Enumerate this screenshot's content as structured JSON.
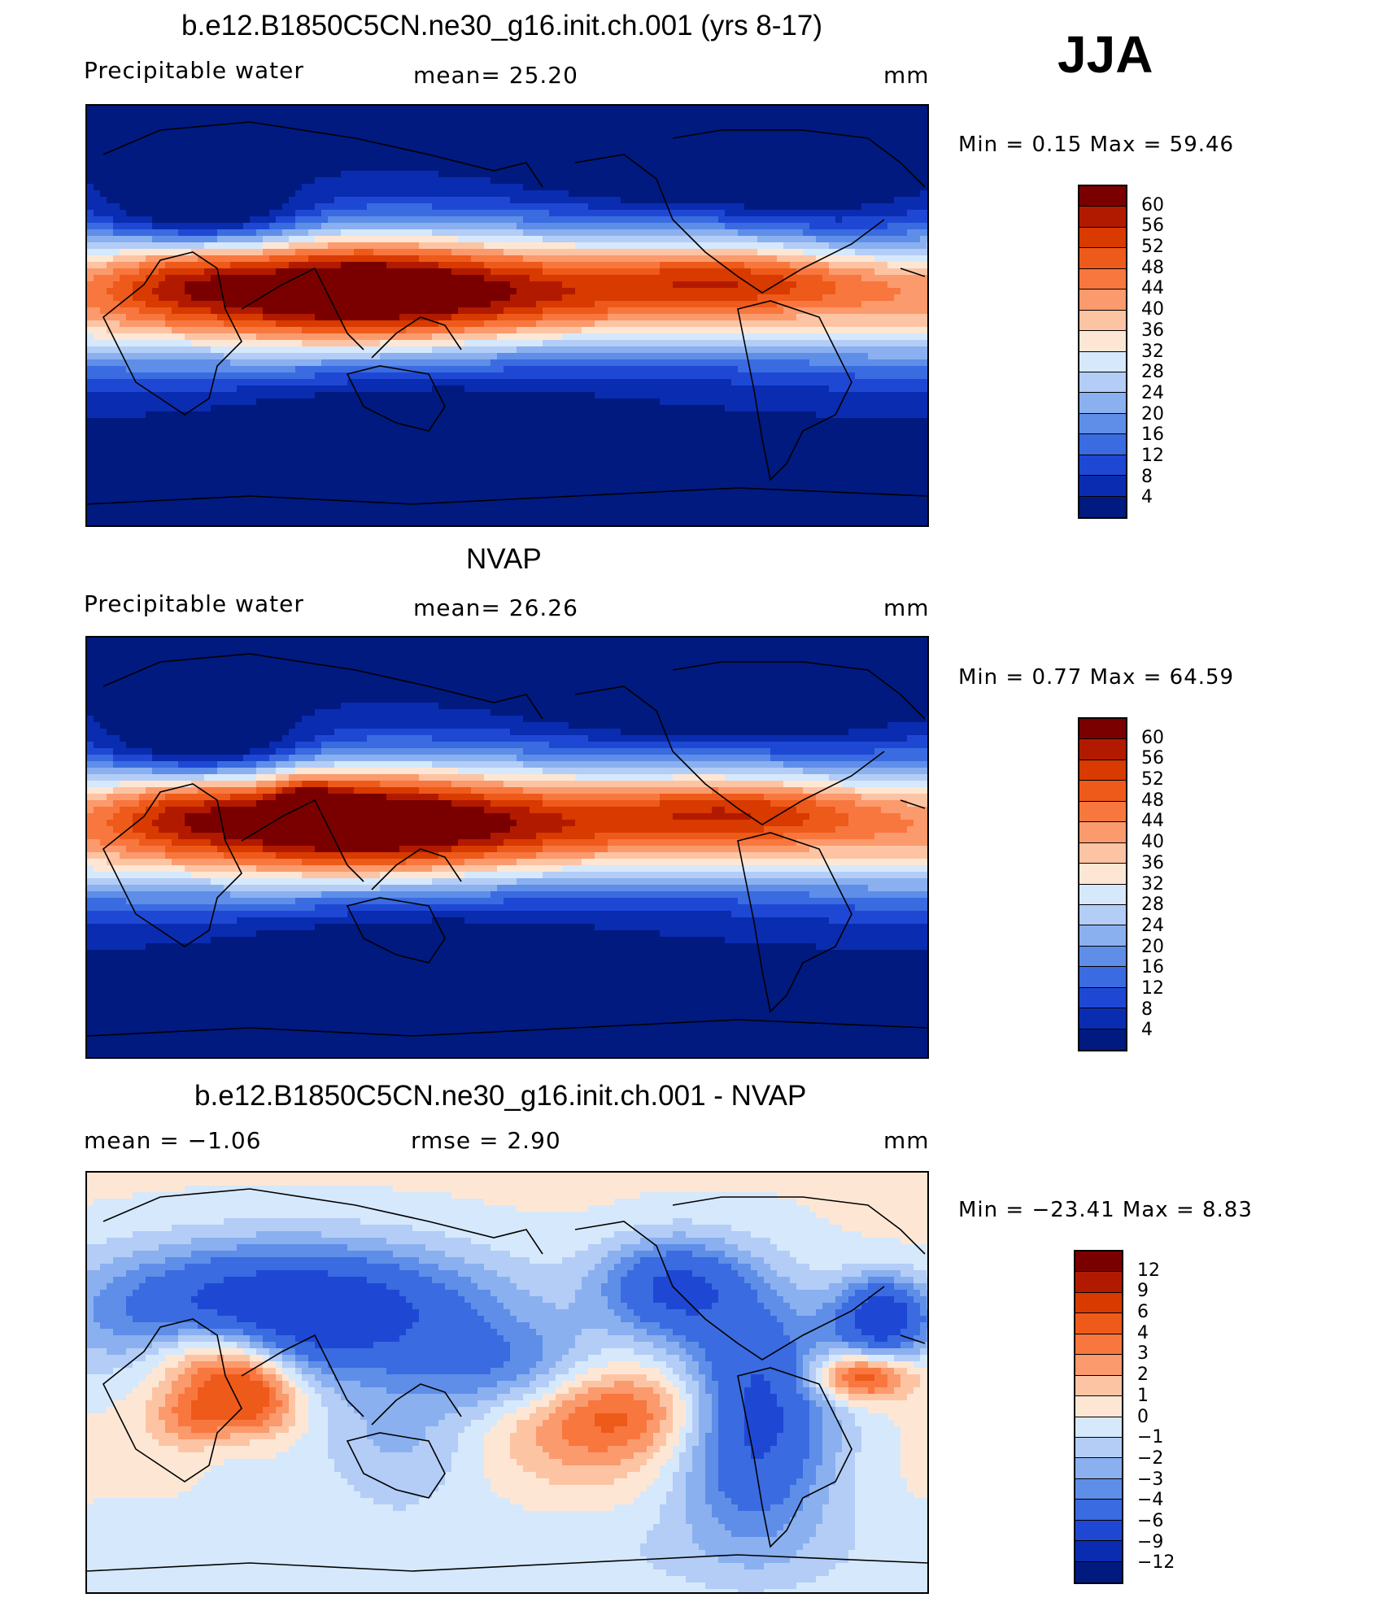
{
  "season": "JJA",
  "panels": [
    {
      "title": "b.e12.B1850C5CN.ne30_g16.init.ch.001 (yrs 8-17)",
      "variable": "Precipitable  water",
      "stat_left": "",
      "stat_mid": "mean=   25.20",
      "units": "mm",
      "minmax": "Min  =     0.15  Max  =    59.46",
      "colorbar_labels": [
        "60",
        "56",
        "52",
        "48",
        "44",
        "40",
        "36",
        "32",
        "28",
        "24",
        "20",
        "16",
        "12",
        "8",
        "4"
      ],
      "colors": [
        "#7a0000",
        "#b21a00",
        "#d83a00",
        "#ee5a1a",
        "#f8773e",
        "#fb9a6c",
        "#fdc4a4",
        "#fde7d4",
        "#d6e8fb",
        "#b3cdf6",
        "#8ab0ef",
        "#5e8ee8",
        "#3a6be0",
        "#1e48d4",
        "#0a2cb0",
        "#001a80"
      ],
      "kind": "pw"
    },
    {
      "title": "NVAP",
      "variable": "Precipitable  water",
      "stat_left": "",
      "stat_mid": "mean=   26.26",
      "units": "mm",
      "minmax": "Min  =     0.77  Max  =    64.59",
      "colorbar_labels": [
        "60",
        "56",
        "52",
        "48",
        "44",
        "40",
        "36",
        "32",
        "28",
        "24",
        "20",
        "16",
        "12",
        "8",
        "4"
      ],
      "colors": [
        "#7a0000",
        "#b21a00",
        "#d83a00",
        "#ee5a1a",
        "#f8773e",
        "#fb9a6c",
        "#fdc4a4",
        "#fde7d4",
        "#d6e8fb",
        "#b3cdf6",
        "#8ab0ef",
        "#5e8ee8",
        "#3a6be0",
        "#1e48d4",
        "#0a2cb0",
        "#001a80"
      ],
      "kind": "pw"
    },
    {
      "title": "b.e12.B1850C5CN.ne30_g16.init.ch.001 - NVAP",
      "variable": "",
      "stat_left": "mean  =   −1.06",
      "stat_mid": "rmse  =     2.90",
      "units": "mm",
      "minmax": "Min  =  −23.41  Max  =     8.83",
      "colorbar_labels": [
        "12",
        "9",
        "6",
        "4",
        "3",
        "2",
        "1",
        "0",
        "−1",
        "−2",
        "−3",
        "−4",
        "−6",
        "−9",
        "−12"
      ],
      "colors": [
        "#7a0000",
        "#b21a00",
        "#d83a00",
        "#ee5a1a",
        "#f8773e",
        "#fb9a6c",
        "#fdc4a4",
        "#fde7d4",
        "#d6e8fb",
        "#b3cdf6",
        "#8ab0ef",
        "#5e8ee8",
        "#3a6be0",
        "#1e48d4",
        "#0a2cb0",
        "#001a80"
      ],
      "kind": "diff"
    }
  ]
}
